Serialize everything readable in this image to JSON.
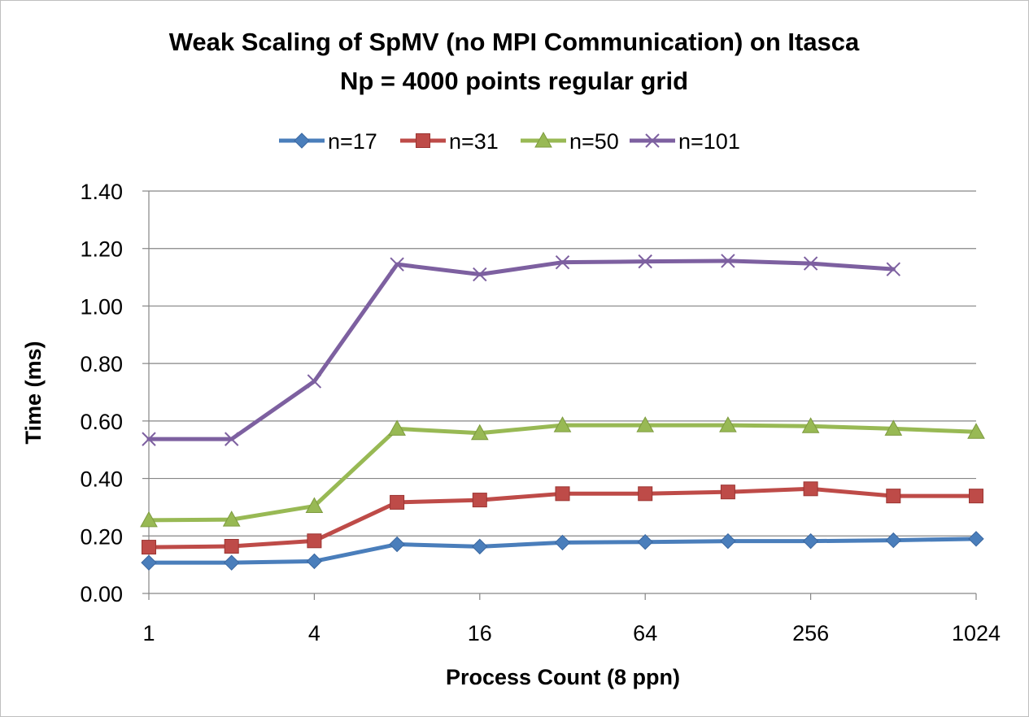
{
  "chart_data": {
    "type": "line",
    "title": "Weak Scaling of SpMV (no MPI Communication) on Itasca",
    "subtitle": "Np = 4000 points regular grid",
    "xlabel": "Process Count (8 ppn)",
    "ylabel": "Time (ms)",
    "x_scale": "log2",
    "x": [
      1,
      2,
      4,
      8,
      16,
      32,
      64,
      128,
      256,
      512,
      1024
    ],
    "x_tick_labels": [
      "1",
      "4",
      "16",
      "64",
      "256",
      "1024"
    ],
    "x_tick_values": [
      1,
      4,
      16,
      64,
      256,
      1024
    ],
    "ylim": [
      0,
      1.4
    ],
    "y_ticks": [
      "0.00",
      "0.20",
      "0.40",
      "0.60",
      "0.80",
      "1.00",
      "1.20",
      "1.40"
    ],
    "grid": "horizontal",
    "legend_position": "top",
    "series": [
      {
        "name": "n=17",
        "color": "#4a7ebb",
        "marker": "diamond",
        "values": [
          0.107,
          0.107,
          0.112,
          0.171,
          0.163,
          0.177,
          0.179,
          0.182,
          0.182,
          0.185,
          0.19
        ]
      },
      {
        "name": "n=31",
        "color": "#be4b48",
        "marker": "square",
        "values": [
          0.161,
          0.164,
          0.183,
          0.317,
          0.325,
          0.347,
          0.347,
          0.353,
          0.364,
          0.339,
          0.339
        ]
      },
      {
        "name": "n=50",
        "color": "#98b954",
        "marker": "triangle",
        "values": [
          0.255,
          0.257,
          0.304,
          0.573,
          0.558,
          0.585,
          0.585,
          0.585,
          0.582,
          0.573,
          0.562
        ]
      },
      {
        "name": "n=101",
        "color": "#7d60a0",
        "marker": "x",
        "values": [
          0.537,
          0.537,
          0.738,
          1.145,
          1.11,
          1.152,
          1.155,
          1.157,
          1.148,
          1.128,
          null
        ]
      }
    ]
  }
}
